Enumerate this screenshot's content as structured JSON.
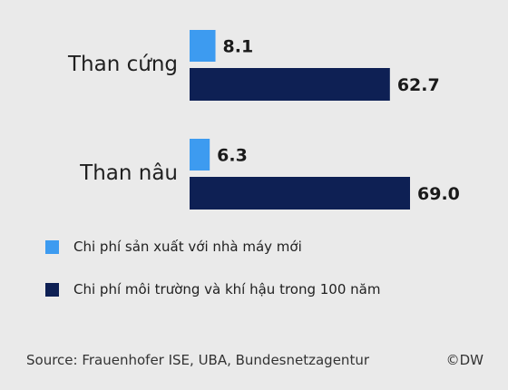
{
  "chart_data": {
    "type": "bar",
    "orientation": "horizontal",
    "categories": [
      "Than cứng",
      "Than nâu"
    ],
    "series": [
      {
        "name": "Chi phí sản xuất với nhà máy mới",
        "values": [
          8.1,
          6.3
        ],
        "color": "#3d9bf0"
      },
      {
        "name": "Chi phí môi trường và khí hậu trong 100 năm",
        "values": [
          62.7,
          69.0
        ],
        "color": "#0e2054"
      }
    ],
    "value_labels": [
      [
        "8.1",
        "6.3"
      ],
      [
        "62.7",
        "69.0"
      ]
    ],
    "xlim": [
      0,
      69.0
    ],
    "grid": false,
    "legend_position": "bottom-left"
  },
  "legend": {
    "items": [
      {
        "label": "Chi phí sản xuất với nhà máy mới",
        "color": "#3d9bf0"
      },
      {
        "label": "Chi phí môi trường và khí hậu trong 100 năm",
        "color": "#0e2054"
      }
    ]
  },
  "footer": {
    "source": "Source: Frauenhofer ISE, UBA, Bundesnetzagentur",
    "credit": "©DW"
  }
}
